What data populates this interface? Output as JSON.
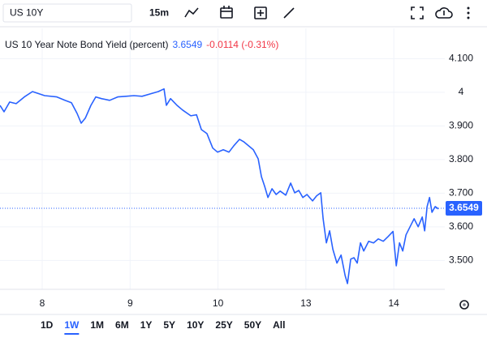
{
  "toolbar": {
    "symbol": "US 10Y",
    "interval": "15m"
  },
  "chart_data": {
    "type": "line",
    "title": "US 10 Year Note Bond Yield (percent)",
    "legend": {
      "last": 3.6549,
      "change": "-0.0114 (-0.31%)"
    },
    "xlim": [
      -0.48,
      4.58
    ],
    "xticks": [
      {
        "value": 0,
        "label": "8"
      },
      {
        "value": 1,
        "label": "9"
      },
      {
        "value": 2,
        "label": "10"
      },
      {
        "value": 3,
        "label": "13"
      },
      {
        "value": 4,
        "label": "14"
      }
    ],
    "ylim": [
      3.414,
      4.19
    ],
    "yticks": [
      {
        "value": 4.1,
        "label": "4.100"
      },
      4,
      {
        "value": 3.9,
        "label": "3.900"
      },
      {
        "value": 3.8,
        "label": "3.800"
      },
      {
        "value": 3.7,
        "label": "3.700"
      },
      {
        "value": 3.6,
        "label": "3.600"
      },
      {
        "value": 3.5,
        "label": "3.500"
      }
    ],
    "grid": true,
    "series": [
      {
        "color": "#2962ff",
        "x": [
          -0.48,
          -0.434,
          -0.37,
          -0.296,
          -0.203,
          -0.111,
          0.028,
          0.166,
          0.259,
          0.333,
          0.397,
          0.443,
          0.49,
          0.554,
          0.61,
          0.674,
          0.767,
          0.859,
          0.952,
          1.044,
          1.136,
          1.229,
          1.321,
          1.386,
          1.413,
          1.46,
          1.534,
          1.598,
          1.691,
          1.755,
          1.811,
          1.875,
          1.94,
          1.995,
          2.06,
          2.125,
          2.18,
          2.245,
          2.291,
          2.346,
          2.402,
          2.457,
          2.494,
          2.531,
          2.568,
          2.614,
          2.661,
          2.707,
          2.771,
          2.827,
          2.873,
          2.919,
          2.965,
          3.012,
          3.076,
          3.122,
          3.169,
          3.196,
          3.233,
          3.27,
          3.307,
          3.353,
          3.4,
          3.446,
          3.473,
          3.51,
          3.547,
          3.584,
          3.621,
          3.658,
          3.714,
          3.769,
          3.824,
          3.88,
          3.935,
          3.991,
          4.028,
          4.065,
          4.102,
          4.139,
          4.185,
          4.231,
          4.277,
          4.323,
          4.351,
          4.379,
          4.406,
          4.434,
          4.471,
          4.508
        ],
        "values": [
          3.961,
          3.942,
          3.971,
          3.966,
          3.986,
          4.002,
          3.99,
          3.986,
          3.976,
          3.969,
          3.937,
          3.908,
          3.923,
          3.961,
          3.986,
          3.981,
          3.976,
          3.986,
          3.988,
          3.99,
          3.988,
          3.995,
          4.002,
          4.01,
          3.961,
          3.981,
          3.961,
          3.947,
          3.93,
          3.933,
          3.889,
          3.877,
          3.834,
          3.822,
          3.829,
          3.822,
          3.841,
          3.86,
          3.853,
          3.841,
          3.829,
          3.802,
          3.749,
          3.72,
          3.687,
          3.713,
          3.696,
          3.706,
          3.694,
          3.73,
          3.701,
          3.708,
          3.687,
          3.696,
          3.677,
          3.692,
          3.701,
          3.624,
          3.552,
          3.588,
          3.533,
          3.492,
          3.516,
          3.455,
          3.431,
          3.504,
          3.508,
          3.492,
          3.552,
          3.528,
          3.557,
          3.552,
          3.564,
          3.557,
          3.571,
          3.586,
          3.484,
          3.552,
          3.528,
          3.576,
          3.6,
          3.624,
          3.6,
          3.629,
          3.588,
          3.66,
          3.687,
          3.643,
          3.66,
          3.653
        ]
      }
    ]
  },
  "ranges": {
    "items": [
      "1D",
      "1W",
      "1M",
      "6M",
      "1Y",
      "5Y",
      "10Y",
      "25Y",
      "50Y",
      "All"
    ],
    "active": 1
  }
}
